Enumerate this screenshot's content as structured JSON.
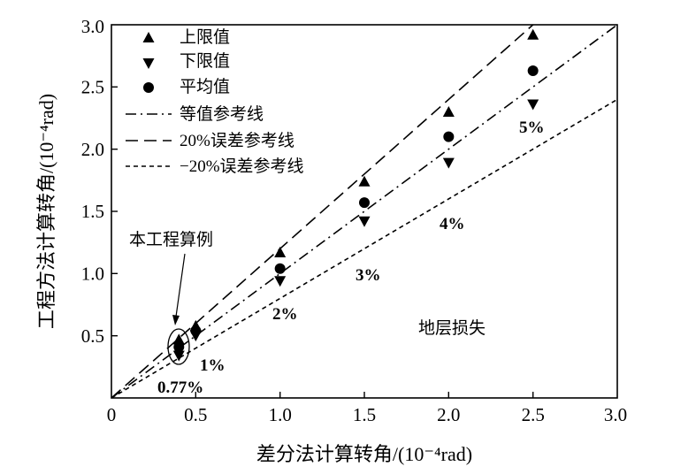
{
  "chart_data": {
    "type": "scatter",
    "xlabel": "差分法计算转角/(10⁻⁴rad)",
    "ylabel": "工程方法计算转角/(10⁻⁴rad)",
    "xlim": [
      0,
      3.0
    ],
    "ylim": [
      0,
      3.0
    ],
    "x_ticks": [
      "0",
      "0.5",
      "1.0",
      "1.5",
      "2.0",
      "2.5",
      "3.0"
    ],
    "y_ticks": [
      "0.5",
      "1.0",
      "1.5",
      "2.0",
      "2.5",
      "3.0"
    ],
    "series": [
      {
        "name": "上限值",
        "marker": "triangle-up",
        "x": [
          0.4,
          0.5,
          1.0,
          1.5,
          2.0,
          2.5
        ],
        "y": [
          0.47,
          0.58,
          1.17,
          1.74,
          2.3,
          2.92
        ]
      },
      {
        "name": "下限值",
        "marker": "triangle-down",
        "x": [
          0.4,
          0.5,
          1.0,
          1.5,
          2.0,
          2.5
        ],
        "y": [
          0.34,
          0.5,
          0.94,
          1.42,
          1.89,
          2.36
        ]
      },
      {
        "name": "平均值",
        "marker": "circle",
        "x": [
          0.4,
          0.5,
          1.0,
          1.5,
          2.0,
          2.5
        ],
        "y": [
          0.41,
          0.54,
          1.04,
          1.57,
          2.1,
          2.63
        ]
      }
    ],
    "reference_lines": [
      {
        "name": "等值参考线",
        "slope": 1.0,
        "style": "dash-dot"
      },
      {
        "name": "20%误差参考线",
        "slope": 1.2,
        "style": "long-dash"
      },
      {
        "name": "−20%误差参考线",
        "slope": 0.8,
        "style": "short-dash"
      }
    ],
    "annotations": {
      "case_label": "本工程算例",
      "region_label": "地层损失",
      "percent_labels": [
        {
          "text": "0.77%",
          "x": 0.4
        },
        {
          "text": "1%",
          "x": 0.5
        },
        {
          "text": "2%",
          "x": 1.0
        },
        {
          "text": "3%",
          "x": 1.5
        },
        {
          "text": "4%",
          "x": 2.0
        },
        {
          "text": "5%",
          "x": 2.5
        }
      ]
    },
    "legend_position": "top-left"
  }
}
